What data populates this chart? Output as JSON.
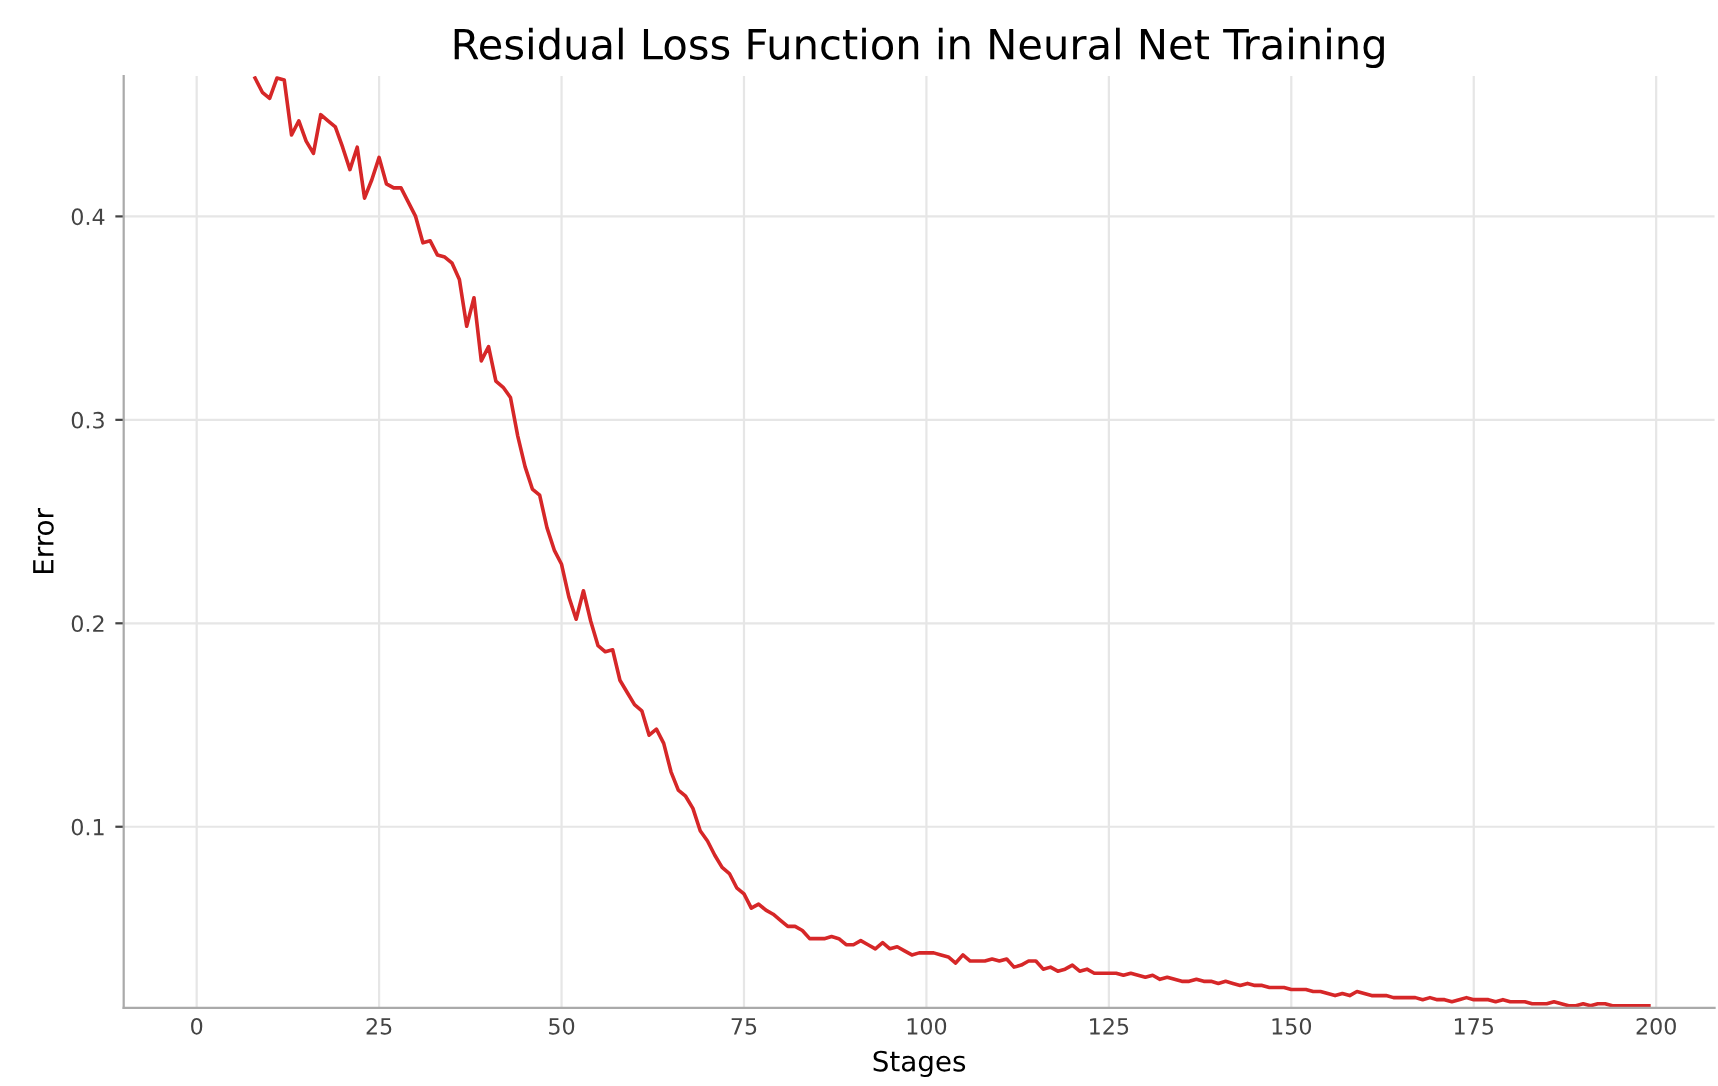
{
  "chart_data": {
    "type": "line",
    "title": "Residual Loss Function in Neural Net Training",
    "xlabel": "Stages",
    "ylabel": "Error",
    "x": [
      8,
      9,
      10,
      11,
      12,
      13,
      14,
      15,
      16,
      17,
      18,
      19,
      20,
      21,
      22,
      23,
      24,
      25,
      26,
      27,
      28,
      29,
      30,
      31,
      32,
      33,
      34,
      35,
      36,
      37,
      38,
      39,
      40,
      41,
      42,
      43,
      44,
      45,
      46,
      47,
      48,
      49,
      50,
      51,
      52,
      53,
      54,
      55,
      56,
      57,
      58,
      59,
      60,
      61,
      62,
      63,
      64,
      65,
      66,
      67,
      68,
      69,
      70,
      71,
      72,
      73,
      74,
      75,
      76,
      77,
      78,
      79,
      80,
      81,
      82,
      83,
      84,
      85,
      86,
      87,
      88,
      89,
      90,
      91,
      92,
      93,
      94,
      95,
      96,
      97,
      98,
      99,
      100,
      101,
      102,
      103,
      104,
      105,
      106,
      107,
      108,
      109,
      110,
      111,
      112,
      113,
      114,
      115,
      116,
      117,
      118,
      119,
      120,
      121,
      122,
      123,
      124,
      125,
      126,
      127,
      128,
      129,
      130,
      131,
      132,
      133,
      134,
      135,
      136,
      137,
      138,
      139,
      140,
      141,
      142,
      143,
      144,
      145,
      146,
      147,
      148,
      149,
      150,
      151,
      152,
      153,
      154,
      155,
      156,
      157,
      158,
      159,
      160,
      161,
      162,
      163,
      164,
      165,
      166,
      167,
      168,
      169,
      170,
      171,
      172,
      173,
      174,
      175,
      176,
      177,
      178,
      179,
      180,
      181,
      182,
      183,
      184,
      185,
      186,
      187,
      188,
      189,
      190,
      191,
      192,
      193,
      194,
      195,
      196,
      197,
      198,
      199
    ],
    "series": [
      {
        "color": "#d62728",
        "values": [
          0.468,
          0.461,
          0.458,
          0.468,
          0.467,
          0.44,
          0.447,
          0.437,
          0.431,
          0.45,
          0.447,
          0.444,
          0.434,
          0.423,
          0.434,
          0.409,
          0.418,
          0.429,
          0.416,
          0.414,
          0.414,
          0.407,
          0.4,
          0.387,
          0.388,
          0.381,
          0.38,
          0.377,
          0.369,
          0.346,
          0.36,
          0.329,
          0.336,
          0.319,
          0.316,
          0.311,
          0.292,
          0.277,
          0.266,
          0.263,
          0.247,
          0.236,
          0.229,
          0.213,
          0.202,
          0.216,
          0.201,
          0.189,
          0.186,
          0.187,
          0.172,
          0.166,
          0.16,
          0.157,
          0.145,
          0.148,
          0.141,
          0.127,
          0.118,
          0.115,
          0.109,
          0.098,
          0.093,
          0.086,
          0.08,
          0.077,
          0.07,
          0.067,
          0.06,
          0.062,
          0.059,
          0.057,
          0.054,
          0.051,
          0.051,
          0.049,
          0.045,
          0.045,
          0.045,
          0.046,
          0.045,
          0.042,
          0.042,
          0.044,
          0.042,
          0.04,
          0.043,
          0.04,
          0.041,
          0.039,
          0.037,
          0.038,
          0.038,
          0.038,
          0.037,
          0.036,
          0.033,
          0.037,
          0.034,
          0.034,
          0.034,
          0.035,
          0.034,
          0.035,
          0.031,
          0.032,
          0.034,
          0.034,
          0.03,
          0.031,
          0.029,
          0.03,
          0.032,
          0.029,
          0.03,
          0.028,
          0.028,
          0.028,
          0.028,
          0.027,
          0.028,
          0.027,
          0.026,
          0.027,
          0.025,
          0.026,
          0.025,
          0.024,
          0.024,
          0.025,
          0.024,
          0.024,
          0.023,
          0.024,
          0.023,
          0.022,
          0.023,
          0.022,
          0.022,
          0.021,
          0.021,
          0.021,
          0.02,
          0.02,
          0.02,
          0.019,
          0.019,
          0.018,
          0.017,
          0.018,
          0.017,
          0.019,
          0.018,
          0.017,
          0.017,
          0.017,
          0.016,
          0.016,
          0.016,
          0.016,
          0.015,
          0.016,
          0.015,
          0.015,
          0.014,
          0.015,
          0.016,
          0.015,
          0.015,
          0.015,
          0.014,
          0.015,
          0.014,
          0.014,
          0.014,
          0.013,
          0.013,
          0.013,
          0.014,
          0.013,
          0.012,
          0.012,
          0.013,
          0.012,
          0.013,
          0.013,
          0.012,
          0.012,
          0.012,
          0.012,
          0.012,
          0.012
        ]
      }
    ],
    "xlim": [
      -10,
      208
    ],
    "ylim": [
      0.011,
      0.469
    ],
    "xticks": [
      0,
      25,
      50,
      75,
      100,
      125,
      150,
      175,
      200
    ],
    "yticks": [
      0.1,
      0.2,
      0.3,
      0.4
    ],
    "grid": true,
    "legend": false,
    "marker": "none",
    "line_style": "solid"
  }
}
